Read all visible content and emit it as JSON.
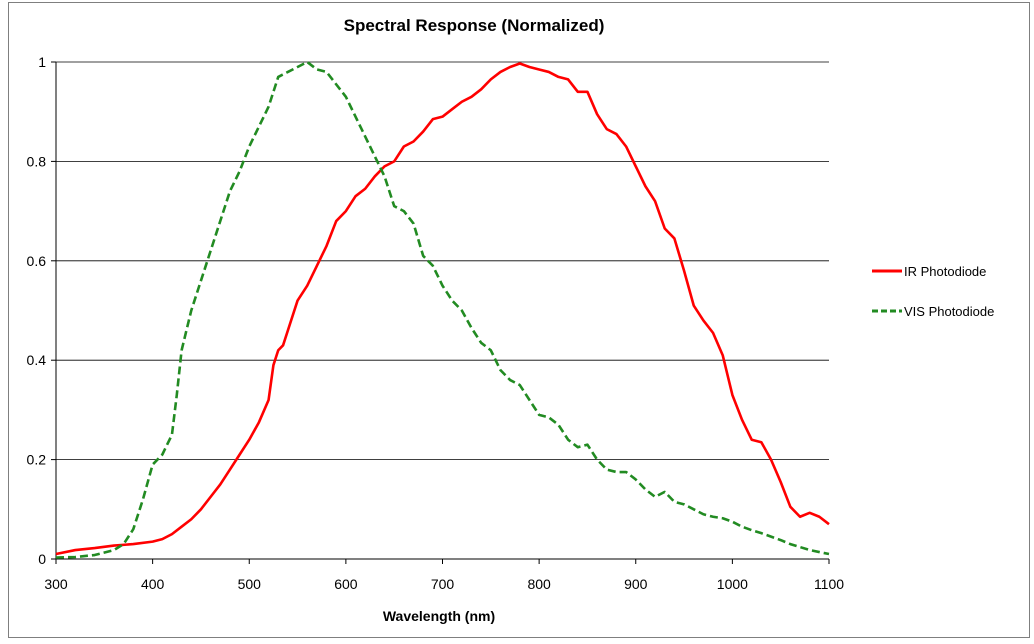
{
  "chart_data": {
    "type": "line",
    "title": "Spectral Response (Normalized)",
    "xlabel": "Wavelength (nm)",
    "ylabel": "",
    "xlim": [
      300,
      1100
    ],
    "ylim": [
      0,
      1
    ],
    "xticks": [
      300,
      400,
      500,
      600,
      700,
      800,
      900,
      1000,
      1100
    ],
    "yticks": [
      0,
      0.2,
      0.4,
      0.6,
      0.8,
      1
    ],
    "ytick_labels": [
      "0",
      "0.2",
      "0.4",
      "0.6",
      "0.8",
      "1"
    ],
    "grid": "horizontal",
    "legend": "right",
    "series": [
      {
        "name": "IR Photodiode",
        "color": "#ff0000",
        "style": "solid",
        "points": [
          [
            300,
            0.01
          ],
          [
            320,
            0.018
          ],
          [
            340,
            0.022
          ],
          [
            360,
            0.027
          ],
          [
            380,
            0.03
          ],
          [
            400,
            0.035
          ],
          [
            410,
            0.04
          ],
          [
            420,
            0.05
          ],
          [
            430,
            0.065
          ],
          [
            440,
            0.08
          ],
          [
            450,
            0.1
          ],
          [
            460,
            0.125
          ],
          [
            470,
            0.15
          ],
          [
            480,
            0.18
          ],
          [
            490,
            0.21
          ],
          [
            500,
            0.24
          ],
          [
            510,
            0.275
          ],
          [
            520,
            0.32
          ],
          [
            525,
            0.39
          ],
          [
            530,
            0.42
          ],
          [
            535,
            0.43
          ],
          [
            540,
            0.46
          ],
          [
            550,
            0.52
          ],
          [
            560,
            0.55
          ],
          [
            570,
            0.59
          ],
          [
            580,
            0.63
          ],
          [
            590,
            0.68
          ],
          [
            600,
            0.7
          ],
          [
            610,
            0.73
          ],
          [
            620,
            0.745
          ],
          [
            630,
            0.77
          ],
          [
            640,
            0.79
          ],
          [
            650,
            0.8
          ],
          [
            660,
            0.83
          ],
          [
            670,
            0.84
          ],
          [
            680,
            0.86
          ],
          [
            690,
            0.885
          ],
          [
            700,
            0.89
          ],
          [
            710,
            0.905
          ],
          [
            720,
            0.92
          ],
          [
            730,
            0.93
          ],
          [
            740,
            0.945
          ],
          [
            750,
            0.965
          ],
          [
            760,
            0.98
          ],
          [
            770,
            0.99
          ],
          [
            780,
            0.997
          ],
          [
            790,
            0.99
          ],
          [
            800,
            0.985
          ],
          [
            810,
            0.98
          ],
          [
            820,
            0.97
          ],
          [
            830,
            0.965
          ],
          [
            840,
            0.94
          ],
          [
            850,
            0.94
          ],
          [
            860,
            0.895
          ],
          [
            870,
            0.865
          ],
          [
            880,
            0.855
          ],
          [
            890,
            0.83
          ],
          [
            900,
            0.79
          ],
          [
            910,
            0.75
          ],
          [
            920,
            0.72
          ],
          [
            930,
            0.665
          ],
          [
            940,
            0.645
          ],
          [
            950,
            0.58
          ],
          [
            960,
            0.51
          ],
          [
            970,
            0.48
          ],
          [
            980,
            0.455
          ],
          [
            990,
            0.41
          ],
          [
            1000,
            0.33
          ],
          [
            1010,
            0.28
          ],
          [
            1020,
            0.24
          ],
          [
            1030,
            0.235
          ],
          [
            1040,
            0.2
          ],
          [
            1050,
            0.155
          ],
          [
            1060,
            0.105
          ],
          [
            1070,
            0.085
          ],
          [
            1080,
            0.093
          ],
          [
            1090,
            0.085
          ],
          [
            1100,
            0.07
          ]
        ]
      },
      {
        "name": "VIS Photodiode",
        "color": "#228b22",
        "style": "dashed",
        "points": [
          [
            300,
            0.003
          ],
          [
            320,
            0.004
          ],
          [
            340,
            0.008
          ],
          [
            360,
            0.018
          ],
          [
            370,
            0.03
          ],
          [
            380,
            0.06
          ],
          [
            390,
            0.12
          ],
          [
            400,
            0.19
          ],
          [
            410,
            0.21
          ],
          [
            420,
            0.25
          ],
          [
            425,
            0.33
          ],
          [
            430,
            0.42
          ],
          [
            440,
            0.5
          ],
          [
            450,
            0.56
          ],
          [
            460,
            0.62
          ],
          [
            470,
            0.68
          ],
          [
            480,
            0.74
          ],
          [
            490,
            0.78
          ],
          [
            500,
            0.83
          ],
          [
            510,
            0.87
          ],
          [
            520,
            0.91
          ],
          [
            530,
            0.97
          ],
          [
            540,
            0.98
          ],
          [
            550,
            0.99
          ],
          [
            560,
            1.0
          ],
          [
            570,
            0.985
          ],
          [
            580,
            0.98
          ],
          [
            590,
            0.955
          ],
          [
            600,
            0.93
          ],
          [
            610,
            0.89
          ],
          [
            620,
            0.85
          ],
          [
            630,
            0.81
          ],
          [
            640,
            0.77
          ],
          [
            650,
            0.71
          ],
          [
            660,
            0.7
          ],
          [
            670,
            0.675
          ],
          [
            680,
            0.61
          ],
          [
            690,
            0.59
          ],
          [
            700,
            0.55
          ],
          [
            710,
            0.52
          ],
          [
            720,
            0.5
          ],
          [
            730,
            0.465
          ],
          [
            740,
            0.435
          ],
          [
            750,
            0.42
          ],
          [
            760,
            0.38
          ],
          [
            770,
            0.36
          ],
          [
            780,
            0.35
          ],
          [
            790,
            0.32
          ],
          [
            800,
            0.29
          ],
          [
            810,
            0.285
          ],
          [
            820,
            0.27
          ],
          [
            830,
            0.24
          ],
          [
            840,
            0.225
          ],
          [
            850,
            0.23
          ],
          [
            860,
            0.2
          ],
          [
            870,
            0.18
          ],
          [
            880,
            0.175
          ],
          [
            890,
            0.175
          ],
          [
            900,
            0.16
          ],
          [
            910,
            0.14
          ],
          [
            920,
            0.125
          ],
          [
            930,
            0.135
          ],
          [
            940,
            0.115
          ],
          [
            950,
            0.11
          ],
          [
            960,
            0.1
          ],
          [
            970,
            0.09
          ],
          [
            980,
            0.085
          ],
          [
            990,
            0.082
          ],
          [
            1000,
            0.075
          ],
          [
            1010,
            0.065
          ],
          [
            1020,
            0.058
          ],
          [
            1030,
            0.052
          ],
          [
            1040,
            0.045
          ],
          [
            1050,
            0.038
          ],
          [
            1060,
            0.03
          ],
          [
            1070,
            0.024
          ],
          [
            1080,
            0.018
          ],
          [
            1090,
            0.014
          ],
          [
            1100,
            0.01
          ]
        ]
      }
    ]
  }
}
